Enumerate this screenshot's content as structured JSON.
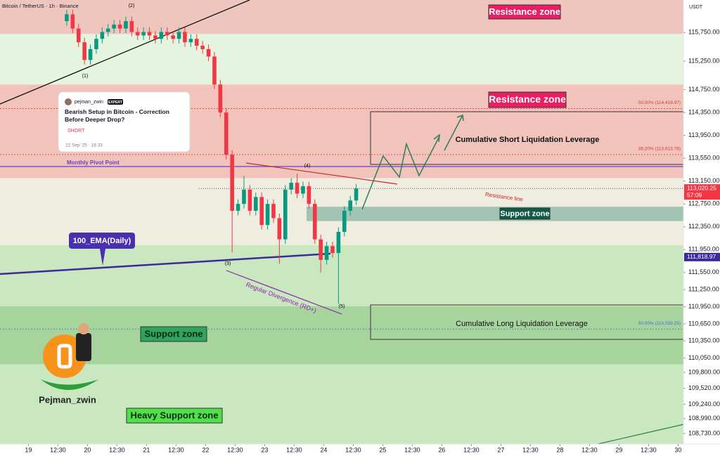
{
  "chart_data": {
    "type": "candlestick",
    "title": "Bitcoin / TetherUS · 1h · Binance",
    "currency": "USDT",
    "x": [
      19.65,
      19.75,
      19.85,
      19.95,
      20.05,
      20.15,
      20.25,
      20.35,
      20.45,
      20.55,
      20.65,
      20.75,
      20.85,
      20.95,
      21.05,
      21.15,
      21.25,
      21.35,
      21.45,
      21.55,
      21.65,
      21.75,
      21.85,
      21.95,
      22.05,
      22.15,
      22.25,
      22.35,
      22.45,
      22.55,
      22.65,
      22.75,
      22.85,
      22.95,
      23.05,
      23.15,
      23.25,
      23.35,
      23.45,
      23.55,
      23.65,
      23.75,
      23.85,
      23.95,
      24.05,
      24.15,
      24.25,
      24.35,
      24.45,
      24.55
    ],
    "open": [
      115950,
      116070,
      115820,
      115580,
      115270,
      115460,
      115640,
      115760,
      115820,
      115890,
      115820,
      115950,
      115760,
      115700,
      115760,
      115700,
      115640,
      115760,
      115700,
      115640,
      115760,
      115580,
      115640,
      115520,
      115460,
      115330,
      114840,
      114350,
      113610,
      112630,
      112750,
      113000,
      112630,
      112870,
      112380,
      112750,
      112500,
      112130,
      113000,
      113120,
      112930,
      113060,
      112750,
      112130,
      111770,
      112010,
      111890,
      112260,
      112630,
      112810
    ],
    "high": [
      116150,
      116150,
      115900,
      115660,
      115540,
      115720,
      115840,
      115900,
      115970,
      115970,
      116030,
      116030,
      115840,
      115840,
      115840,
      115780,
      115840,
      115840,
      115780,
      115840,
      115840,
      115720,
      115720,
      115600,
      115540,
      115410,
      114920,
      114430,
      113690,
      112830,
      113240,
      113080,
      112950,
      112950,
      112830,
      112830,
      112580,
      113080,
      113200,
      113280,
      113140,
      113140,
      112830,
      112210,
      112090,
      112090,
      112340,
      112710,
      112890,
      113100
    ],
    "low": [
      115870,
      115740,
      115500,
      115190,
      115190,
      115380,
      115560,
      115680,
      115740,
      115740,
      115740,
      115680,
      115620,
      115620,
      115620,
      115560,
      115560,
      115620,
      115560,
      115560,
      115500,
      115500,
      115440,
      115380,
      115250,
      114760,
      114270,
      113530,
      111900,
      112550,
      112670,
      112550,
      112550,
      112300,
      112300,
      112420,
      111700,
      112050,
      112920,
      112850,
      112850,
      112670,
      112050,
      111550,
      111690,
      111810,
      111000,
      112180,
      112550,
      112730
    ],
    "close": [
      116070,
      115820,
      115580,
      115270,
      115460,
      115640,
      115760,
      115820,
      115890,
      115820,
      115950,
      115760,
      115700,
      115760,
      115700,
      115640,
      115760,
      115700,
      115640,
      115760,
      115580,
      115640,
      115520,
      115460,
      115330,
      114840,
      114350,
      113610,
      112630,
      112750,
      113000,
      112630,
      112870,
      112380,
      112750,
      112500,
      112130,
      113000,
      113120,
      112930,
      113060,
      112750,
      112130,
      111770,
      112010,
      111890,
      112260,
      112630,
      112810,
      113020
    ],
    "up_color": "#089981",
    "down_color": "#f23645",
    "xlim": [
      18.52,
      30.09
    ],
    "xticks": [
      19,
      {
        "value": 19.5,
        "label": "12:30"
      },
      20,
      {
        "value": 20.5,
        "label": "12:30"
      },
      21,
      {
        "value": 21.5,
        "label": "12:30"
      },
      22,
      {
        "value": 22.5,
        "label": "12:30"
      },
      23,
      {
        "value": 23.5,
        "label": "12:30"
      },
      24,
      {
        "value": 24.5,
        "label": "12:30"
      },
      25,
      {
        "value": 25.5,
        "label": "12:30"
      },
      26,
      {
        "value": 26.5,
        "label": "12:30"
      },
      27,
      {
        "value": 27.5,
        "label": "12:30"
      },
      28,
      {
        "value": 28.5,
        "label": "12:30"
      },
      29,
      {
        "value": 29.5,
        "label": "12:30"
      },
      30
    ],
    "ylim": [
      108545,
      116320
    ],
    "yticks": [
      {
        "value": 115750,
        "label": "115,750.00"
      },
      {
        "value": 115250,
        "label": "115,250.00"
      },
      {
        "value": 114750,
        "label": "114,750.00"
      },
      {
        "value": 114350,
        "label": "114,350.00"
      },
      {
        "value": 113950,
        "label": "113,950.00"
      },
      {
        "value": 113550,
        "label": "113,550.00"
      },
      {
        "value": 113150,
        "label": "113,150.00"
      },
      {
        "value": 112750,
        "label": "112,750.00"
      },
      {
        "value": 112350,
        "label": "112,350.00"
      },
      {
        "value": 111950,
        "label": "111,950.00"
      },
      {
        "value": 111550,
        "label": "111,550.00"
      },
      {
        "value": 111250,
        "label": "111,250.00"
      },
      {
        "value": 110950,
        "label": "110,950.00"
      },
      {
        "value": 110650,
        "label": "110,650.00"
      },
      {
        "value": 110350,
        "label": "110,350.00"
      },
      {
        "value": 110050,
        "label": "110,050.00"
      },
      {
        "value": 109800,
        "label": "109,800.00"
      },
      {
        "value": 109520,
        "label": "109,520.00"
      },
      {
        "value": 109240,
        "label": "109,240.00"
      },
      {
        "value": 108990,
        "label": "108,990.00"
      },
      {
        "value": 108730,
        "label": "108,730.00"
      }
    ],
    "zones": [
      {
        "from": 115725,
        "to": 116320,
        "color": "#efc6bd"
      },
      {
        "from": 114840,
        "to": 115725,
        "color": "#e4f4de"
      },
      {
        "from": 113200,
        "to": 114840,
        "color": "#f1c3bb"
      },
      {
        "from": 112030,
        "to": 113200,
        "color": "#efece0"
      },
      {
        "from": 110960,
        "to": 112030,
        "color": "#c9e8bf"
      },
      {
        "from": 109940,
        "to": 110960,
        "color": "#a7d49d"
      },
      {
        "from": 108545,
        "to": 109940,
        "color": "#c9e8bf"
      },
      {
        "from": 112450,
        "to": 112700,
        "color": "#a3c3b3"
      }
    ],
    "levels": [
      {
        "value": 114419.97,
        "label": "50.00% (114,419.97)",
        "color": "#d63a3a"
      },
      {
        "value": 113613.78,
        "label": "38.20% (113,613.78)",
        "color": "#d63a3a"
      },
      {
        "value": 110559.25,
        "label": "50.00% (110,559.25)",
        "color": "#3a6fd6"
      }
    ],
    "price_labels": [
      {
        "value": 113020.25,
        "label": "113,020.25",
        "color": "#f23645"
      },
      {
        "value": 111818.97,
        "label": "111,818.97",
        "color": "#3f2a9c"
      }
    ],
    "countdown": "57:09",
    "annotations": [
      "Resistance zone",
      "Resistance zone",
      "Support zone",
      "Support zone",
      "Heavy Support zone",
      "Cumulative Short Liquidation Leverage",
      "Cumulative Long Liquidation Leverage",
      "Monthly Pivot Point",
      "100_EMA(Daily)",
      "Resistance line",
      "Regular Divergence (RD+)",
      "(1)",
      "(2)",
      "(3)",
      "(4)",
      "(5)",
      "Pejman_zwin"
    ]
  },
  "card": {
    "author": "pejman_zwin",
    "badge": "EXPERT",
    "title": "Bearish Setup in Bitcoin - Correction Before Deeper Drop?",
    "signal": "SHORT",
    "date": "22 Sep '25 · 16:33"
  }
}
